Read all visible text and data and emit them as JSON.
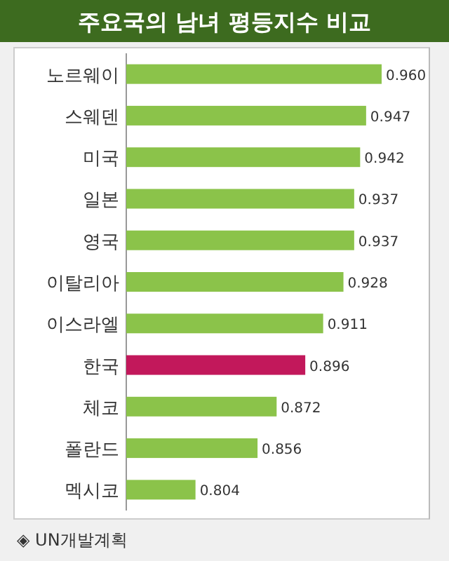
{
  "chart_data": {
    "type": "bar",
    "orientation": "horizontal",
    "title": "주요국의 남녀 평등지수 비교",
    "categories": [
      "노르웨이",
      "스웨덴",
      "미국",
      "일본",
      "영국",
      "이탈리아",
      "이스라엘",
      "한국",
      "체코",
      "폴란드",
      "멕시코"
    ],
    "values": [
      0.96,
      0.947,
      0.942,
      0.937,
      0.937,
      0.928,
      0.911,
      0.896,
      0.872,
      0.856,
      0.804
    ],
    "value_labels": [
      "0.960",
      "0.947",
      "0.942",
      "0.937",
      "0.937",
      "0.928",
      "0.911",
      "0.896",
      "0.872",
      "0.856",
      "0.804"
    ],
    "colors": [
      "#8bc34a",
      "#8bc34a",
      "#8bc34a",
      "#8bc34a",
      "#8bc34a",
      "#8bc34a",
      "#8bc34a",
      "#c2185b",
      "#8bc34a",
      "#8bc34a",
      "#8bc34a"
    ],
    "xlim": [
      0.746,
      1.0
    ],
    "annotations": [
      "◈ UN개발계획"
    ]
  }
}
